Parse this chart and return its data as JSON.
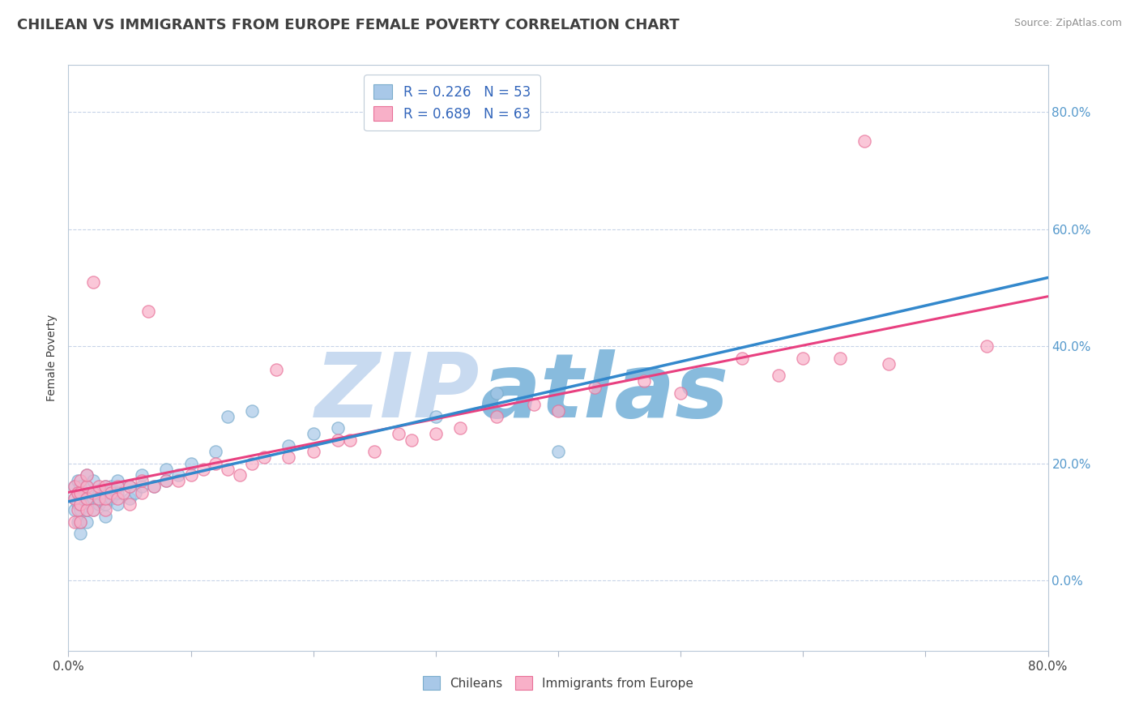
{
  "title": "CHILEAN VS IMMIGRANTS FROM EUROPE FEMALE POVERTY CORRELATION CHART",
  "source": "Source: ZipAtlas.com",
  "ylabel": "Female Poverty",
  "right_ytick_labels": [
    "0.0%",
    "20.0%",
    "40.0%",
    "60.0%",
    "80.0%"
  ],
  "right_ytick_values": [
    0.0,
    0.2,
    0.4,
    0.6,
    0.8
  ],
  "xlim": [
    0.0,
    0.8
  ],
  "ylim": [
    -0.12,
    0.88
  ],
  "legend_r1": "R = 0.226",
  "legend_n1": "N = 53",
  "legend_r2": "R = 0.689",
  "legend_n2": "N = 63",
  "color_chilean": "#a8c8e8",
  "color_immigrant": "#f8b0c8",
  "color_edge_chilean": "#7aaccc",
  "color_edge_immigrant": "#e87098",
  "color_line_chilean": "#3388cc",
  "color_line_immigrant": "#e84080",
  "watermark_zip": "ZIP",
  "watermark_atlas": "atlas",
  "watermark_color_zip": "#c8daf0",
  "watermark_color_atlas": "#88bbdd",
  "watermark_fontsize": 80,
  "chilean_x": [
    0.005,
    0.005,
    0.005,
    0.008,
    0.008,
    0.008,
    0.008,
    0.01,
    0.01,
    0.01,
    0.01,
    0.01,
    0.01,
    0.01,
    0.015,
    0.015,
    0.015,
    0.015,
    0.015,
    0.02,
    0.02,
    0.02,
    0.02,
    0.025,
    0.025,
    0.03,
    0.03,
    0.03,
    0.03,
    0.035,
    0.035,
    0.04,
    0.04,
    0.04,
    0.05,
    0.05,
    0.055,
    0.06,
    0.06,
    0.07,
    0.08,
    0.08,
    0.09,
    0.1,
    0.12,
    0.13,
    0.15,
    0.18,
    0.2,
    0.22,
    0.3,
    0.35,
    0.4
  ],
  "chilean_y": [
    0.12,
    0.14,
    0.16,
    0.1,
    0.13,
    0.15,
    0.17,
    0.08,
    0.1,
    0.12,
    0.13,
    0.14,
    0.15,
    0.16,
    0.1,
    0.12,
    0.14,
    0.16,
    0.18,
    0.12,
    0.14,
    0.15,
    0.17,
    0.13,
    0.15,
    0.11,
    0.13,
    0.15,
    0.16,
    0.14,
    0.16,
    0.13,
    0.15,
    0.17,
    0.14,
    0.16,
    0.15,
    0.16,
    0.18,
    0.16,
    0.17,
    0.19,
    0.18,
    0.2,
    0.22,
    0.28,
    0.29,
    0.23,
    0.25,
    0.26,
    0.28,
    0.32,
    0.22
  ],
  "immigrant_x": [
    0.005,
    0.005,
    0.005,
    0.008,
    0.008,
    0.01,
    0.01,
    0.01,
    0.01,
    0.015,
    0.015,
    0.015,
    0.015,
    0.02,
    0.02,
    0.02,
    0.025,
    0.025,
    0.03,
    0.03,
    0.03,
    0.035,
    0.04,
    0.04,
    0.045,
    0.05,
    0.05,
    0.06,
    0.06,
    0.065,
    0.07,
    0.08,
    0.09,
    0.1,
    0.11,
    0.12,
    0.13,
    0.14,
    0.15,
    0.16,
    0.17,
    0.18,
    0.2,
    0.22,
    0.23,
    0.25,
    0.27,
    0.28,
    0.3,
    0.32,
    0.35,
    0.38,
    0.4,
    0.43,
    0.47,
    0.5,
    0.55,
    0.58,
    0.6,
    0.63,
    0.65,
    0.67,
    0.75
  ],
  "immigrant_y": [
    0.1,
    0.14,
    0.16,
    0.12,
    0.15,
    0.1,
    0.13,
    0.15,
    0.17,
    0.12,
    0.14,
    0.16,
    0.18,
    0.12,
    0.15,
    0.51,
    0.14,
    0.16,
    0.12,
    0.14,
    0.16,
    0.15,
    0.14,
    0.16,
    0.15,
    0.13,
    0.16,
    0.15,
    0.17,
    0.46,
    0.16,
    0.17,
    0.17,
    0.18,
    0.19,
    0.2,
    0.19,
    0.18,
    0.2,
    0.21,
    0.36,
    0.21,
    0.22,
    0.24,
    0.24,
    0.22,
    0.25,
    0.24,
    0.25,
    0.26,
    0.28,
    0.3,
    0.29,
    0.33,
    0.34,
    0.32,
    0.38,
    0.35,
    0.38,
    0.38,
    0.75,
    0.37,
    0.4
  ],
  "grid_color": "#c8d4e8",
  "bg_color": "#ffffff",
  "title_color": "#404040",
  "source_color": "#909090",
  "title_fontsize": 13,
  "axis_label_fontsize": 10,
  "tick_fontsize": 11
}
